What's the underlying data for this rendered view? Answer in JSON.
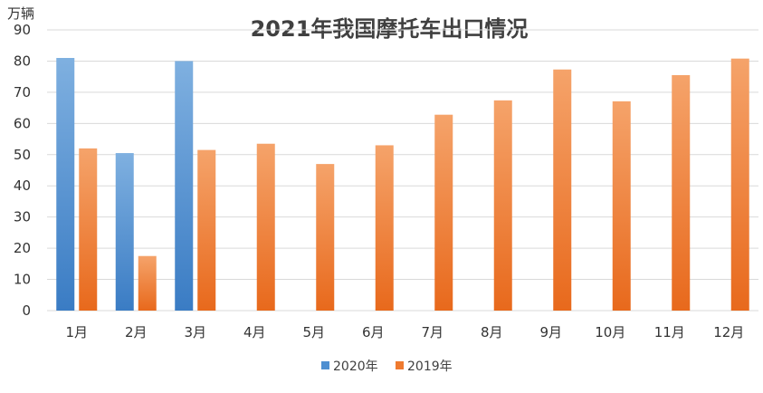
{
  "chart_data": {
    "type": "bar",
    "title": "2021年我国摩托车出口情况",
    "unit_label": "万辆",
    "categories": [
      "1月",
      "2月",
      "3月",
      "4月",
      "5月",
      "6月",
      "7月",
      "8月",
      "9月",
      "10月",
      "11月",
      "12月"
    ],
    "series": [
      {
        "name": "2020年",
        "color": "#4e8fd1",
        "values": [
          81,
          50.5,
          80,
          null,
          null,
          null,
          null,
          null,
          null,
          null,
          null,
          null
        ]
      },
      {
        "name": "2019年",
        "color": "#ef7a2f",
        "values": [
          52,
          17.5,
          51.5,
          53.5,
          47,
          53,
          62.8,
          67.4,
          77.3,
          67.1,
          75.5,
          80.8
        ]
      }
    ],
    "ylim": [
      0,
      90
    ],
    "yticks": [
      0,
      10,
      20,
      30,
      40,
      50,
      60,
      70,
      80,
      90
    ],
    "grid": true,
    "legend_position": "bottom"
  }
}
